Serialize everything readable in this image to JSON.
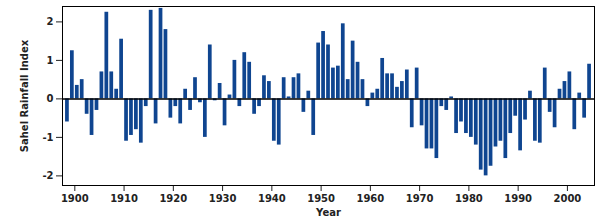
{
  "chart_data": {
    "type": "bar",
    "x_label": "Year",
    "y_label": "Sahel Rainfall Index",
    "x": [
      1898,
      1899,
      1900,
      1901,
      1902,
      1903,
      1904,
      1905,
      1906,
      1907,
      1908,
      1909,
      1910,
      1911,
      1912,
      1913,
      1914,
      1915,
      1916,
      1917,
      1918,
      1919,
      1920,
      1921,
      1922,
      1923,
      1924,
      1925,
      1926,
      1927,
      1928,
      1929,
      1930,
      1931,
      1932,
      1933,
      1934,
      1935,
      1936,
      1937,
      1938,
      1939,
      1940,
      1941,
      1942,
      1943,
      1944,
      1945,
      1946,
      1947,
      1948,
      1949,
      1950,
      1951,
      1952,
      1953,
      1954,
      1955,
      1956,
      1957,
      1958,
      1959,
      1960,
      1961,
      1962,
      1963,
      1964,
      1965,
      1966,
      1967,
      1968,
      1969,
      1970,
      1971,
      1972,
      1973,
      1974,
      1975,
      1976,
      1977,
      1978,
      1979,
      1980,
      1981,
      1982,
      1983,
      1984,
      1985,
      1986,
      1987,
      1988,
      1989,
      1990,
      1991,
      1992,
      1993,
      1994,
      1995,
      1996,
      1997,
      1998,
      1999,
      2000,
      2001,
      2002,
      2003,
      2004
    ],
    "values": [
      -0.6,
      1.25,
      0.35,
      0.5,
      -0.4,
      -0.95,
      -0.3,
      0.7,
      2.25,
      0.7,
      0.25,
      1.55,
      -1.1,
      -0.95,
      -0.8,
      -1.15,
      -0.2,
      2.3,
      -0.65,
      2.35,
      1.8,
      -0.5,
      -0.2,
      -0.65,
      0.25,
      -0.3,
      0.55,
      -0.1,
      -1.0,
      1.4,
      -0.05,
      0.4,
      -0.7,
      0.1,
      1.0,
      -0.2,
      1.2,
      0.95,
      -0.4,
      -0.2,
      0.6,
      0.45,
      -1.1,
      -1.2,
      0.55,
      0.05,
      0.55,
      0.65,
      -0.35,
      0.2,
      -0.95,
      1.45,
      1.75,
      1.4,
      0.8,
      0.85,
      1.95,
      0.5,
      1.5,
      0.95,
      0.5,
      -0.2,
      0.15,
      0.25,
      1.05,
      0.65,
      0.65,
      0.3,
      0.45,
      0.75,
      -0.75,
      0.8,
      -0.7,
      -1.3,
      -1.3,
      -1.55,
      -0.2,
      -0.3,
      0.05,
      -0.9,
      -0.6,
      -0.9,
      -1.0,
      -1.2,
      -1.85,
      -2.0,
      -1.75,
      -1.25,
      -1.1,
      -1.55,
      -0.9,
      -0.45,
      -1.35,
      -0.55,
      0.2,
      -1.1,
      -1.15,
      0.8,
      -0.35,
      -0.75,
      0.25,
      0.45,
      0.7,
      -0.8,
      0.15,
      -0.5,
      0.9
    ],
    "color": "#0f4590",
    "xlim": [
      1897.5,
      2005.5
    ],
    "xticks": [
      1900,
      1910,
      1920,
      1930,
      1940,
      1950,
      1960,
      1970,
      1980,
      1990,
      2000
    ],
    "ylim": [
      -2.25,
      2.4
    ],
    "yticks": [
      -2,
      -1,
      0,
      1,
      2
    ],
    "grid": false
  }
}
